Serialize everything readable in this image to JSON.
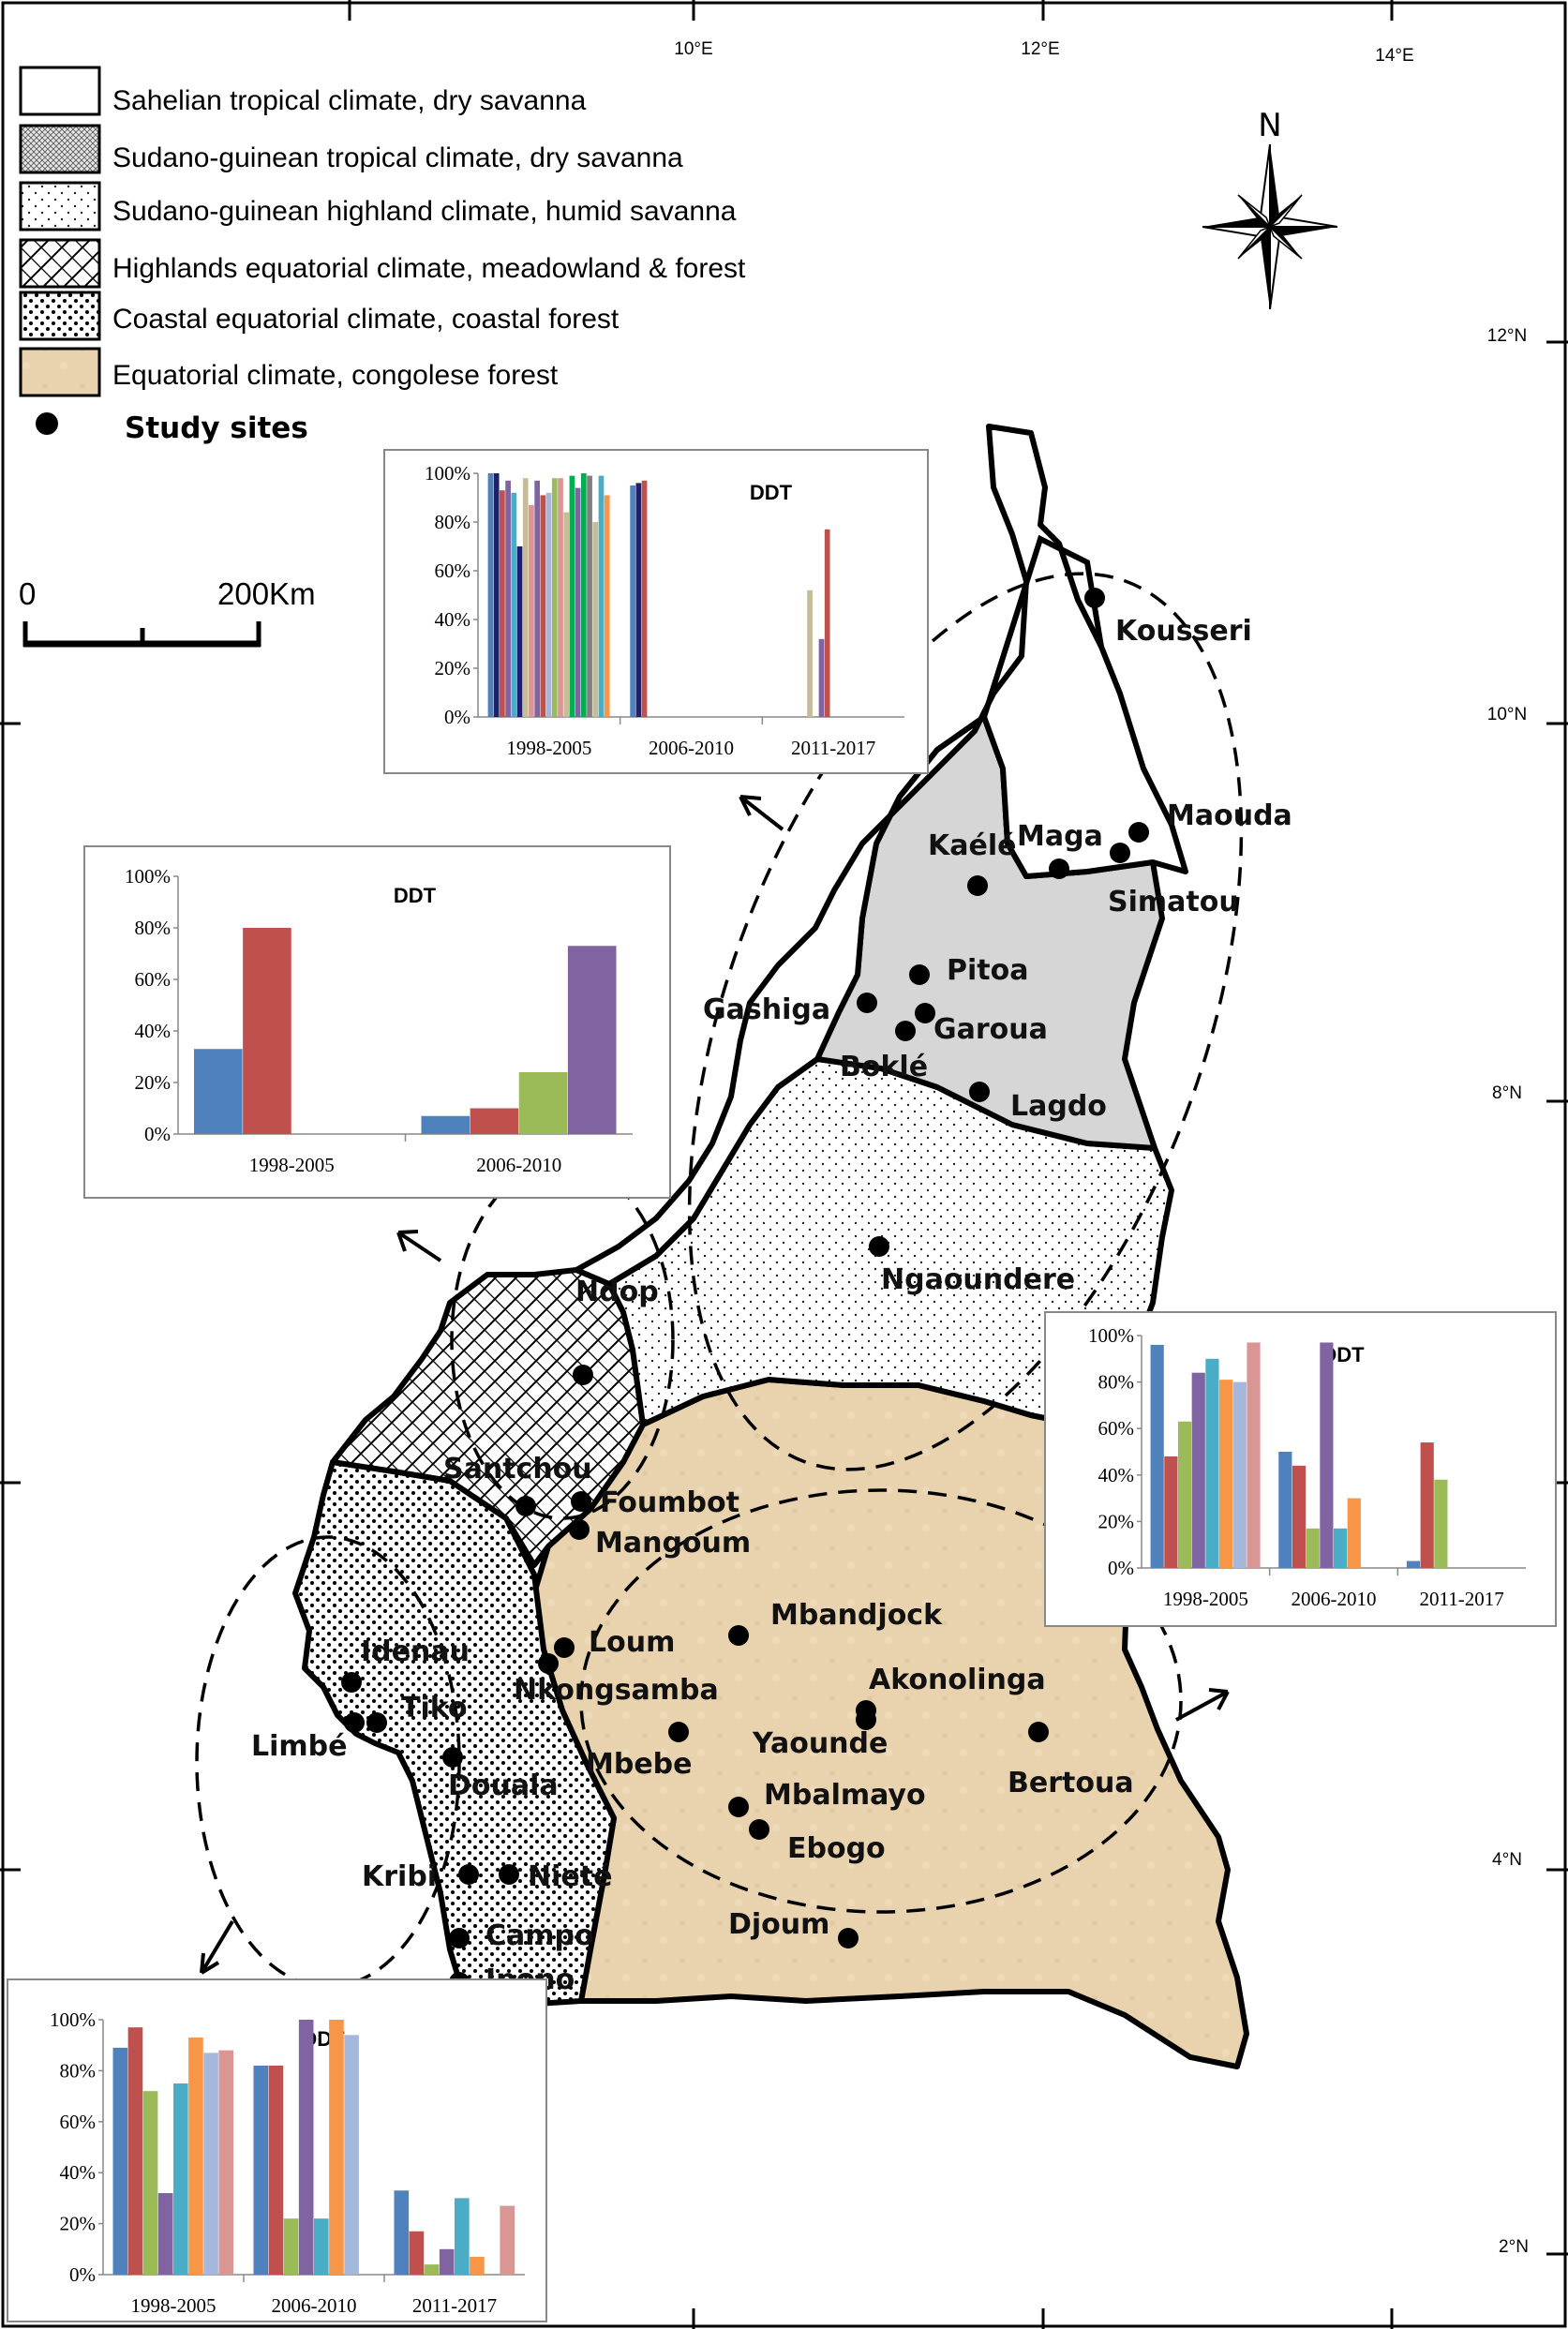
{
  "legend": {
    "items": [
      {
        "label": "Sahelian tropical climate, dry savanna",
        "pattern": "plain"
      },
      {
        "label": "Sudano-guinean  tropical climate, dry savanna",
        "pattern": "grid"
      },
      {
        "label": "Sudano-guinean  highland climate, humid savanna",
        "pattern": "fine-dots"
      },
      {
        "label": "Highlands  equatorial climate, meadowland  & forest",
        "pattern": "hatch"
      },
      {
        "label": "Coastal equatorial climate, coastal forest",
        "pattern": "coarse-dots"
      },
      {
        "label": "Equatorial climate, congolese forest",
        "pattern": "tan"
      }
    ],
    "study_sites_label": "Study sites"
  },
  "north_label": "N",
  "scale_bar": {
    "start": "0",
    "end": "200Km"
  },
  "graticule": {
    "longitudes": [
      "10°E",
      "12°E",
      "14°E"
    ],
    "latitudes": [
      "12°N",
      "10°N",
      "8°N",
      "4°N",
      "2°N"
    ]
  },
  "sites": [
    "Kousseri",
    "Maouda",
    "Maga",
    "Simatou",
    "Kaélé",
    "Pitoa",
    "Gashiga",
    "Garoua",
    "Boklé",
    "Lagdo",
    "Ngaoundere",
    "Ndop",
    "Santchou",
    "Foumbot",
    "Mangoum",
    "Loum",
    "Idenau",
    "Nkongsamba",
    "Tiko",
    "Limbé",
    "Douala",
    "Mbebe",
    "Mbandjock",
    "Akonolinga",
    "Yaounde",
    "Mbalmayo",
    "Ebogo",
    "Bertoua",
    "Kribi",
    "Nieté",
    "Campo",
    "Ipono",
    "Djoum"
  ],
  "colors": {
    "tan": "#e8d3ae",
    "grey_region": "#d6d6d6",
    "c1": "#4f81bd",
    "c2": "#c0504d",
    "c3": "#9bbb59",
    "c4": "#8064a2",
    "c5": "#4bacc6",
    "c6": "#f79646",
    "c7": "#a5b8dc",
    "c8": "#d99694",
    "c9": "#1f1f6f",
    "c10": "#c4bd97",
    "c11": "#00b050",
    "c12": "#7f7f7f"
  },
  "chart_data": [
    {
      "type": "bar",
      "title": "DDT",
      "ylim": [
        0,
        100
      ],
      "yticks": [
        "0%",
        "20%",
        "40%",
        "60%",
        "80%",
        "100%"
      ],
      "categories": [
        "1998-2005",
        "2006-2010",
        "2011-2017"
      ],
      "series_values": [
        [
          100,
          95,
          0
        ],
        [
          100,
          96,
          0
        ],
        [
          93,
          97,
          0
        ],
        [
          97,
          0,
          0
        ],
        [
          92,
          0,
          0
        ],
        [
          70,
          0,
          0
        ],
        [
          98,
          0,
          52
        ],
        [
          87,
          0,
          0
        ],
        [
          97,
          0,
          32
        ],
        [
          91,
          0,
          77
        ],
        [
          92,
          0,
          0
        ],
        [
          98,
          0,
          0
        ],
        [
          98,
          0,
          0
        ],
        [
          84,
          0,
          0
        ],
        [
          99,
          0,
          0
        ],
        [
          94,
          0,
          0
        ],
        [
          100,
          0,
          0
        ],
        [
          99,
          0,
          0
        ],
        [
          80,
          0,
          0
        ],
        [
          99,
          0,
          0
        ],
        [
          91,
          0,
          0
        ]
      ]
    },
    {
      "type": "bar",
      "title": "DDT",
      "ylim": [
        0,
        100
      ],
      "yticks": [
        "0%",
        "20%",
        "40%",
        "60%",
        "80%",
        "100%"
      ],
      "categories": [
        "1998-2005",
        "2006-2010"
      ],
      "series": [
        {
          "values": [
            33,
            7
          ]
        },
        {
          "values": [
            80,
            10
          ]
        },
        {
          "values": [
            0,
            24
          ]
        },
        {
          "values": [
            0,
            73
          ]
        }
      ]
    },
    {
      "type": "bar",
      "title": "DDT",
      "ylim": [
        0,
        100
      ],
      "yticks": [
        "0%",
        "20%",
        "40%",
        "60%",
        "80%",
        "100%"
      ],
      "categories": [
        "1998-2005",
        "2006-2010",
        "2011-2017"
      ],
      "series": [
        {
          "values": [
            96,
            50,
            3
          ]
        },
        {
          "values": [
            48,
            44,
            54
          ]
        },
        {
          "values": [
            63,
            17,
            38
          ]
        },
        {
          "values": [
            84,
            97,
            0
          ]
        },
        {
          "values": [
            90,
            17,
            0
          ]
        },
        {
          "values": [
            81,
            30,
            0
          ]
        },
        {
          "values": [
            80,
            0,
            0
          ]
        },
        {
          "values": [
            97,
            0,
            0
          ]
        }
      ]
    },
    {
      "type": "bar",
      "title": "DDT",
      "ylim": [
        0,
        100
      ],
      "yticks": [
        "0%",
        "20%",
        "40%",
        "60%",
        "80%",
        "100%"
      ],
      "categories": [
        "1998-2005",
        "2006-2010",
        "2011-2017"
      ],
      "series": [
        {
          "values": [
            89,
            82,
            33
          ]
        },
        {
          "values": [
            97,
            82,
            17
          ]
        },
        {
          "values": [
            72,
            22,
            4
          ]
        },
        {
          "values": [
            32,
            100,
            10
          ]
        },
        {
          "values": [
            75,
            22,
            30
          ]
        },
        {
          "values": [
            93,
            100,
            7
          ]
        },
        {
          "values": [
            87,
            94,
            0
          ]
        },
        {
          "values": [
            88,
            0,
            27
          ]
        }
      ]
    }
  ]
}
